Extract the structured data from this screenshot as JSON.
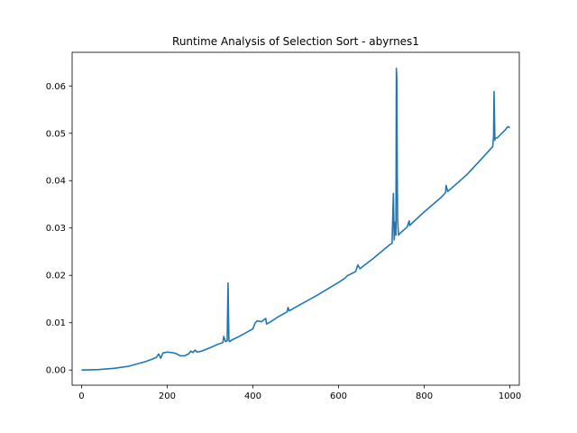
{
  "chart_data": {
    "type": "line",
    "title": "Runtime Analysis of Selection Sort - abyrnes1",
    "xlabel": "",
    "ylabel": "",
    "xlim": [
      -22,
      1022
    ],
    "ylim": [
      -0.0032,
      0.0671
    ],
    "grid": false,
    "colors": {
      "series": "#1f77b4"
    },
    "x_ticks": [
      0,
      200,
      400,
      600,
      800,
      1000
    ],
    "x_tick_labels": [
      "0",
      "200",
      "400",
      "600",
      "800",
      "1000"
    ],
    "y_ticks": [
      0.0,
      0.01,
      0.02,
      0.03,
      0.04,
      0.05,
      0.06
    ],
    "y_tick_labels": [
      "0.00",
      "0.01",
      "0.02",
      "0.03",
      "0.04",
      "0.05",
      "0.06"
    ],
    "series": [
      {
        "x": [
          0,
          40,
          80,
          110,
          130,
          150,
          165,
          175,
          180,
          185,
          190,
          200,
          210,
          220,
          230,
          240,
          250,
          255,
          260,
          265,
          270,
          275,
          280,
          300,
          320,
          330,
          332,
          336,
          340,
          342,
          344,
          346,
          350,
          370,
          400,
          405,
          410,
          420,
          430,
          432,
          435,
          440,
          460,
          480,
          482,
          485,
          500,
          550,
          600,
          615,
          620,
          640,
          645,
          650,
          680,
          700,
          720,
          725,
          728,
          730,
          732,
          734,
          735,
          736,
          737,
          738,
          740,
          745,
          760,
          765,
          766,
          770,
          800,
          840,
          850,
          851,
          855,
          900,
          940,
          960,
          962,
          963,
          965,
          966,
          970,
          990,
          995,
          1000
        ],
        "y": [
          0.0,
          0.0001,
          0.0004,
          0.0008,
          0.0013,
          0.0018,
          0.0023,
          0.0027,
          0.0034,
          0.0025,
          0.0036,
          0.0038,
          0.0037,
          0.0035,
          0.003,
          0.003,
          0.0034,
          0.004,
          0.0037,
          0.0042,
          0.0038,
          0.0039,
          0.004,
          0.0047,
          0.0055,
          0.0058,
          0.0071,
          0.006,
          0.0062,
          0.0184,
          0.0062,
          0.006,
          0.0063,
          0.0072,
          0.0087,
          0.0099,
          0.0104,
          0.0102,
          0.0109,
          0.0097,
          0.0099,
          0.0101,
          0.0113,
          0.0123,
          0.0132,
          0.0125,
          0.0133,
          0.0158,
          0.0185,
          0.0194,
          0.0199,
          0.0208,
          0.0222,
          0.0214,
          0.0235,
          0.025,
          0.0265,
          0.0268,
          0.0373,
          0.0275,
          0.0312,
          0.0285,
          0.0637,
          0.0615,
          0.0425,
          0.0315,
          0.0285,
          0.029,
          0.0302,
          0.0315,
          0.0305,
          0.0309,
          0.0334,
          0.0365,
          0.0375,
          0.039,
          0.0377,
          0.0413,
          0.0452,
          0.0472,
          0.0495,
          0.0588,
          0.0485,
          0.049,
          0.049,
          0.0508,
          0.0514,
          0.0512
        ]
      }
    ]
  }
}
